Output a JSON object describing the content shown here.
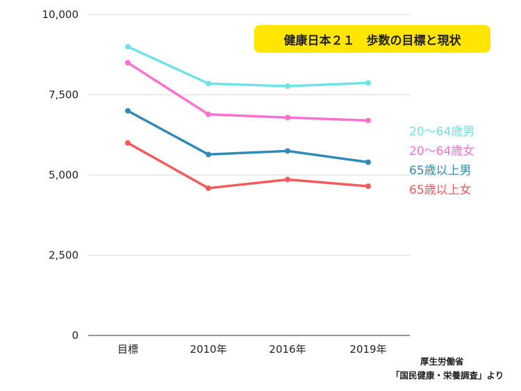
{
  "chart_data": {
    "type": "line",
    "title": "健康日本２１　歩数の目標と現状",
    "categories": [
      "目標",
      "2010年",
      "2016年",
      "2019年"
    ],
    "ylim": [
      0,
      10000
    ],
    "yticks": [
      "0",
      "2,500",
      "5,000",
      "7,500",
      "10,000"
    ],
    "grid": true,
    "legend_position": "right",
    "series": [
      {
        "name": "20～64歳男",
        "color": "#6ee3e6",
        "values": [
          9000,
          7850,
          7770,
          7870
        ]
      },
      {
        "name": "20～64歳女",
        "color": "#ff6fd0",
        "values": [
          8500,
          6890,
          6790,
          6700
        ]
      },
      {
        "name": "65歳以上男",
        "color": "#2f8ab8",
        "values": [
          7000,
          5640,
          5750,
          5400
        ]
      },
      {
        "name": "65歳以上女",
        "color": "#f55a5a",
        "values": [
          6000,
          4590,
          4860,
          4650
        ]
      }
    ]
  },
  "source": {
    "line1": "厚生労働省",
    "line2": "「国民健康・栄養調査」より"
  }
}
